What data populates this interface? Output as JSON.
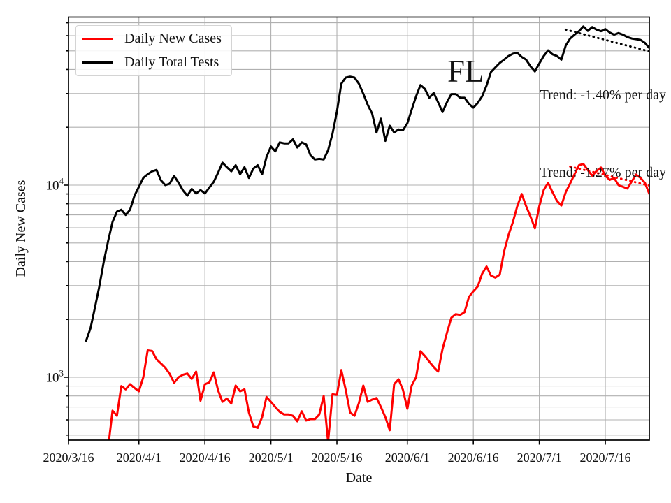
{
  "chart_data": {
    "type": "line",
    "title": "",
    "xlabel": "Date",
    "ylabel": "Daily New Cases",
    "yscale": "log",
    "grid": {
      "visible": true,
      "color": "#b0b0b0"
    },
    "x_axis": {
      "start_date": "2020/3/16",
      "span_days": 132,
      "ticks": [
        {
          "label": "2020/3/16",
          "day": 0
        },
        {
          "label": "2020/4/1",
          "day": 16
        },
        {
          "label": "2020/4/16",
          "day": 31
        },
        {
          "label": "2020/5/1",
          "day": 46
        },
        {
          "label": "2020/5/16",
          "day": 61
        },
        {
          "label": "2020/6/1",
          "day": 77
        },
        {
          "label": "2020/6/16",
          "day": 92
        },
        {
          "label": "2020/7/1",
          "day": 107
        },
        {
          "label": "2020/7/16",
          "day": 122
        }
      ]
    },
    "y_axis": {
      "range": [
        471,
        74600
      ],
      "major_ticks": [
        {
          "mantissa": "10",
          "exponent": "3",
          "value": 1000
        },
        {
          "mantissa": "10",
          "exponent": "4",
          "value": 10000
        }
      ],
      "minor_tick_values": [
        500,
        600,
        700,
        800,
        900,
        2000,
        3000,
        4000,
        5000,
        6000,
        7000,
        8000,
        9000,
        20000,
        30000,
        40000,
        50000,
        60000,
        70000
      ]
    },
    "legend": {
      "position": "upper-left",
      "entries": [
        {
          "label": "Daily New Cases",
          "color": "#ff0000"
        },
        {
          "label": "Daily Total Tests",
          "color": "#000000"
        }
      ]
    },
    "annotations": {
      "state_label": "FL",
      "tests_trend": "Trend: -1.40% per day",
      "cases_trend": "Trend: -1.27% per day"
    },
    "series": [
      {
        "name": "Daily New Cases",
        "color": "#ff0000",
        "line_style": "solid",
        "points": [
          [
            9,
            430
          ],
          [
            10,
            670
          ],
          [
            11,
            630
          ],
          [
            12,
            900
          ],
          [
            13,
            865
          ],
          [
            14,
            920
          ],
          [
            15,
            880
          ],
          [
            16,
            845
          ],
          [
            17,
            1000
          ],
          [
            18,
            1380
          ],
          [
            19,
            1370
          ],
          [
            20,
            1240
          ],
          [
            21,
            1180
          ],
          [
            22,
            1120
          ],
          [
            23,
            1040
          ],
          [
            24,
            935
          ],
          [
            25,
            1000
          ],
          [
            26,
            1030
          ],
          [
            27,
            1045
          ],
          [
            28,
            980
          ],
          [
            29,
            1070
          ],
          [
            30,
            755
          ],
          [
            31,
            920
          ],
          [
            32,
            940
          ],
          [
            33,
            1060
          ],
          [
            34,
            855
          ],
          [
            35,
            745
          ],
          [
            36,
            775
          ],
          [
            37,
            730
          ],
          [
            38,
            905
          ],
          [
            39,
            845
          ],
          [
            40,
            865
          ],
          [
            41,
            655
          ],
          [
            42,
            555
          ],
          [
            43,
            545
          ],
          [
            44,
            620
          ],
          [
            45,
            790
          ],
          [
            46,
            745
          ],
          [
            47,
            700
          ],
          [
            48,
            660
          ],
          [
            49,
            640
          ],
          [
            50,
            640
          ],
          [
            51,
            630
          ],
          [
            52,
            590
          ],
          [
            53,
            665
          ],
          [
            54,
            595
          ],
          [
            55,
            605
          ],
          [
            56,
            605
          ],
          [
            57,
            640
          ],
          [
            58,
            800
          ],
          [
            59,
            460
          ],
          [
            60,
            815
          ],
          [
            61,
            810
          ],
          [
            62,
            1090
          ],
          [
            63,
            860
          ],
          [
            64,
            655
          ],
          [
            65,
            630
          ],
          [
            66,
            735
          ],
          [
            67,
            905
          ],
          [
            68,
            745
          ],
          [
            69,
            765
          ],
          [
            70,
            780
          ],
          [
            71,
            700
          ],
          [
            72,
            620
          ],
          [
            73,
            530
          ],
          [
            74,
            920
          ],
          [
            75,
            975
          ],
          [
            76,
            860
          ],
          [
            77,
            685
          ],
          [
            78,
            905
          ],
          [
            79,
            1000
          ],
          [
            80,
            1365
          ],
          [
            81,
            1290
          ],
          [
            82,
            1205
          ],
          [
            83,
            1130
          ],
          [
            84,
            1070
          ],
          [
            85,
            1400
          ],
          [
            86,
            1700
          ],
          [
            87,
            2040
          ],
          [
            88,
            2130
          ],
          [
            89,
            2110
          ],
          [
            90,
            2180
          ],
          [
            91,
            2620
          ],
          [
            92,
            2800
          ],
          [
            93,
            2970
          ],
          [
            94,
            3460
          ],
          [
            95,
            3770
          ],
          [
            96,
            3380
          ],
          [
            97,
            3300
          ],
          [
            98,
            3420
          ],
          [
            99,
            4520
          ],
          [
            100,
            5500
          ],
          [
            101,
            6420
          ],
          [
            102,
            7780
          ],
          [
            103,
            8990
          ],
          [
            104,
            7780
          ],
          [
            105,
            6860
          ],
          [
            106,
            5960
          ],
          [
            107,
            7780
          ],
          [
            108,
            9440
          ],
          [
            109,
            10280
          ],
          [
            110,
            9190
          ],
          [
            111,
            8280
          ],
          [
            112,
            7830
          ],
          [
            113,
            9190
          ],
          [
            114,
            10200
          ],
          [
            115,
            11400
          ],
          [
            116,
            12700
          ],
          [
            117,
            12900
          ],
          [
            118,
            12000
          ],
          [
            119,
            11200
          ],
          [
            120,
            11850
          ],
          [
            121,
            12350
          ],
          [
            122,
            11200
          ],
          [
            123,
            10650
          ],
          [
            124,
            10900
          ],
          [
            125,
            10000
          ],
          [
            126,
            9800
          ],
          [
            127,
            9600
          ],
          [
            128,
            10450
          ],
          [
            129,
            11350
          ],
          [
            130,
            10900
          ],
          [
            131,
            10280
          ],
          [
            132,
            9000
          ]
        ]
      },
      {
        "name": "Daily Total Tests",
        "color": "#000000",
        "line_style": "solid",
        "points": [
          [
            4,
            1550
          ],
          [
            5,
            1800
          ],
          [
            6,
            2300
          ],
          [
            7,
            2970
          ],
          [
            8,
            3980
          ],
          [
            9,
            5120
          ],
          [
            10,
            6430
          ],
          [
            11,
            7280
          ],
          [
            12,
            7450
          ],
          [
            13,
            7000
          ],
          [
            14,
            7450
          ],
          [
            15,
            8810
          ],
          [
            16,
            9800
          ],
          [
            17,
            10900
          ],
          [
            18,
            11400
          ],
          [
            19,
            11800
          ],
          [
            20,
            12000
          ],
          [
            21,
            10600
          ],
          [
            22,
            10000
          ],
          [
            23,
            10180
          ],
          [
            24,
            11170
          ],
          [
            25,
            10300
          ],
          [
            26,
            9400
          ],
          [
            27,
            8810
          ],
          [
            28,
            9560
          ],
          [
            29,
            9050
          ],
          [
            30,
            9430
          ],
          [
            31,
            9050
          ],
          [
            32,
            9720
          ],
          [
            33,
            10400
          ],
          [
            34,
            11600
          ],
          [
            35,
            13100
          ],
          [
            36,
            12400
          ],
          [
            37,
            11800
          ],
          [
            38,
            12700
          ],
          [
            39,
            11400
          ],
          [
            40,
            12400
          ],
          [
            41,
            10900
          ],
          [
            42,
            12200
          ],
          [
            43,
            12700
          ],
          [
            44,
            11400
          ],
          [
            45,
            14000
          ],
          [
            46,
            15900
          ],
          [
            47,
            15000
          ],
          [
            48,
            16700
          ],
          [
            49,
            16500
          ],
          [
            50,
            16500
          ],
          [
            51,
            17300
          ],
          [
            52,
            15700
          ],
          [
            53,
            16700
          ],
          [
            54,
            16300
          ],
          [
            55,
            14300
          ],
          [
            56,
            13600
          ],
          [
            57,
            13700
          ],
          [
            58,
            13600
          ],
          [
            59,
            15200
          ],
          [
            60,
            18500
          ],
          [
            61,
            24100
          ],
          [
            62,
            33700
          ],
          [
            63,
            36300
          ],
          [
            64,
            36700
          ],
          [
            65,
            36300
          ],
          [
            66,
            33700
          ],
          [
            67,
            29900
          ],
          [
            68,
            26200
          ],
          [
            69,
            23600
          ],
          [
            70,
            18800
          ],
          [
            71,
            22200
          ],
          [
            72,
            17000
          ],
          [
            73,
            20400
          ],
          [
            74,
            18800
          ],
          [
            75,
            19500
          ],
          [
            76,
            19300
          ],
          [
            77,
            21000
          ],
          [
            78,
            24700
          ],
          [
            79,
            29000
          ],
          [
            80,
            33200
          ],
          [
            81,
            31700
          ],
          [
            82,
            28500
          ],
          [
            83,
            30200
          ],
          [
            84,
            27000
          ],
          [
            85,
            24000
          ],
          [
            86,
            27000
          ],
          [
            87,
            29800
          ],
          [
            88,
            29800
          ],
          [
            89,
            28500
          ],
          [
            90,
            28500
          ],
          [
            91,
            26500
          ],
          [
            92,
            25300
          ],
          [
            93,
            26800
          ],
          [
            94,
            29000
          ],
          [
            95,
            33000
          ],
          [
            96,
            38800
          ],
          [
            97,
            41000
          ],
          [
            98,
            43300
          ],
          [
            99,
            45000
          ],
          [
            100,
            47000
          ],
          [
            101,
            48300
          ],
          [
            102,
            48800
          ],
          [
            103,
            46500
          ],
          [
            104,
            45000
          ],
          [
            105,
            41500
          ],
          [
            106,
            39100
          ],
          [
            107,
            43000
          ],
          [
            108,
            47000
          ],
          [
            109,
            50300
          ],
          [
            110,
            48000
          ],
          [
            111,
            47000
          ],
          [
            112,
            45000
          ],
          [
            113,
            53300
          ],
          [
            114,
            58000
          ],
          [
            115,
            60700
          ],
          [
            116,
            63300
          ],
          [
            117,
            67000
          ],
          [
            118,
            63500
          ],
          [
            119,
            66500
          ],
          [
            120,
            64500
          ],
          [
            121,
            63300
          ],
          [
            122,
            64900
          ],
          [
            123,
            62300
          ],
          [
            124,
            60700
          ],
          [
            125,
            61900
          ],
          [
            126,
            60700
          ],
          [
            127,
            59000
          ],
          [
            128,
            58000
          ],
          [
            129,
            57500
          ],
          [
            130,
            57000
          ],
          [
            131,
            55000
          ],
          [
            132,
            51700
          ]
        ]
      },
      {
        "name": "Tests trend fit",
        "color": "#000000",
        "line_style": "dotted",
        "trend_rate": "-1.40% per day",
        "points": [
          [
            113,
            64500
          ],
          [
            132,
            49700
          ]
        ]
      },
      {
        "name": "Cases trend fit",
        "color": "#ff0000",
        "line_style": "dotted",
        "trend_rate": "-1.27% per day",
        "points": [
          [
            114,
            12500
          ],
          [
            132,
            9950
          ]
        ]
      }
    ]
  }
}
